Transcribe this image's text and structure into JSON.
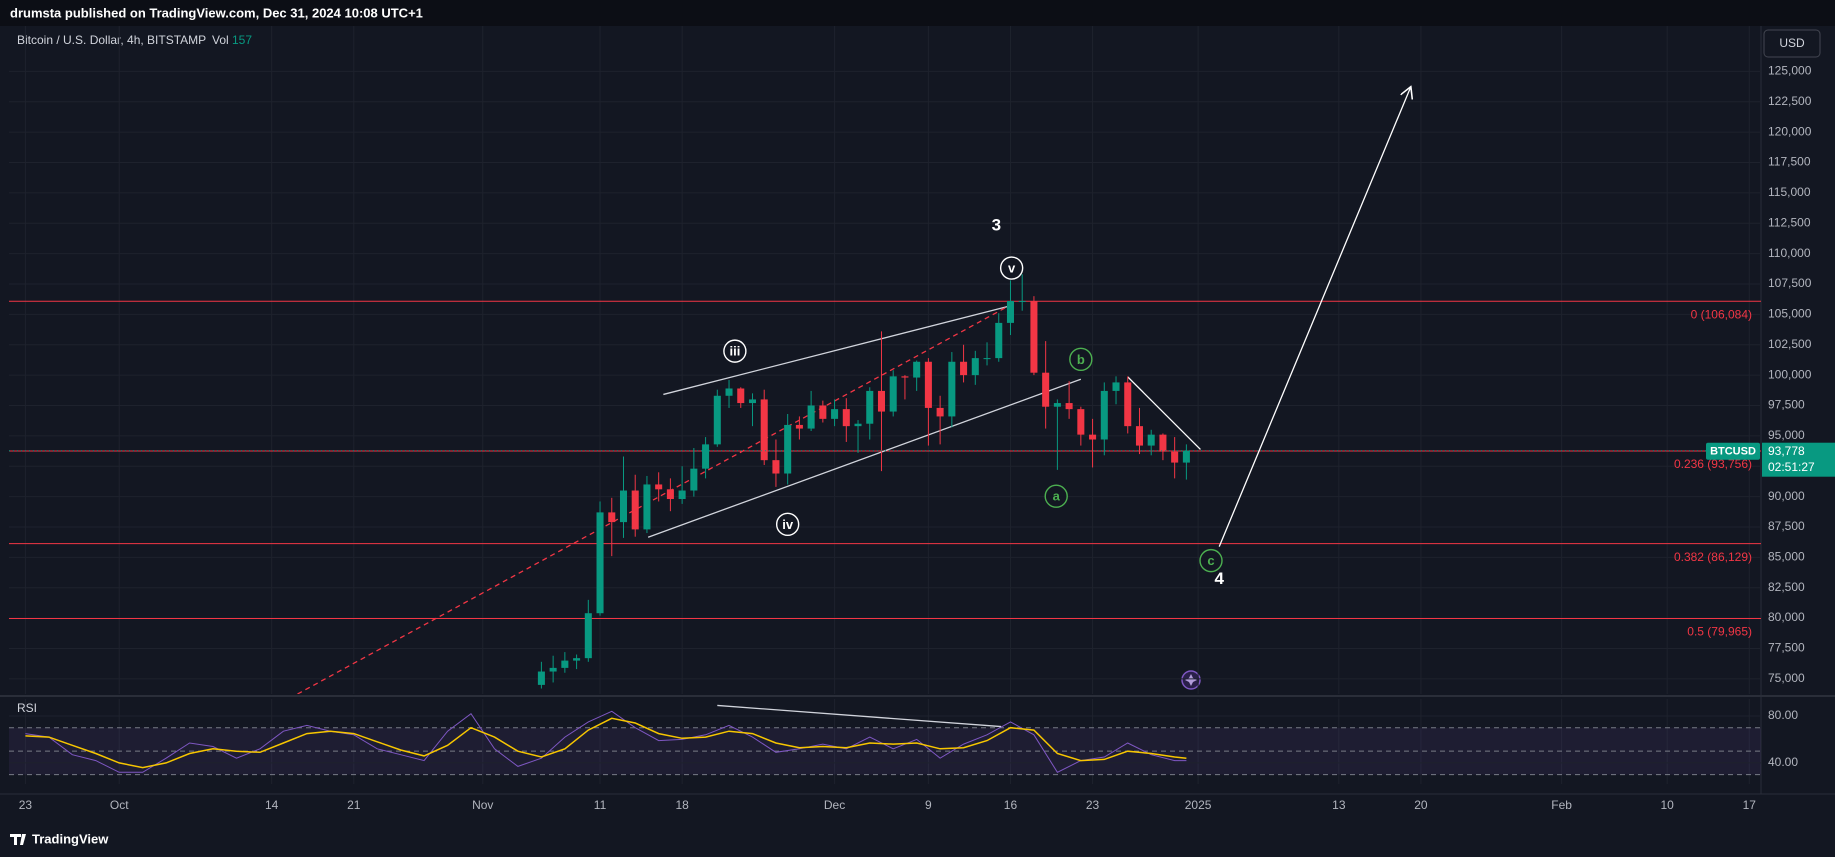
{
  "header": {
    "publisher": "drumsta published on TradingView.com, Dec 31, 2024 10:08 UTC+1",
    "footer": "TradingView"
  },
  "chart_data": [
    {
      "type": "candlestick",
      "legend_title": "Bitcoin / U.S. Dollar, 4h, BITSTAMP",
      "volume_label": "Vol",
      "volume_value": 157,
      "currency": "USD",
      "symbol": "BTCUSD",
      "last_price": {
        "value": 93778,
        "label": "93,778"
      },
      "countdown": "02:51:27",
      "up_color": "#089981",
      "down_color": "#f23645",
      "grid": true,
      "x": [
        44,
        45,
        46,
        47,
        48,
        49,
        50,
        51,
        52,
        53,
        54,
        55,
        56,
        57,
        58,
        59,
        60,
        61,
        62,
        63,
        64,
        65,
        66,
        67,
        68,
        69,
        70,
        71,
        72,
        73,
        74,
        75,
        76,
        77,
        78,
        79,
        80,
        81,
        82,
        83,
        84,
        85,
        86,
        87,
        88,
        89,
        90,
        91,
        92,
        93,
        94,
        95,
        96,
        97,
        98,
        99
      ],
      "open": [
        74500,
        75600,
        75900,
        76500,
        76700,
        80400,
        88700,
        87900,
        90500,
        87300,
        91000,
        90600,
        89800,
        90500,
        92300,
        94300,
        98300,
        98900,
        97700,
        98000,
        93000,
        91900,
        95900,
        95600,
        97500,
        96400,
        97200,
        95800,
        96000,
        98700,
        97000,
        99900,
        99800,
        101100,
        97300,
        96600,
        101100,
        100000,
        101400,
        101400,
        104300,
        106100,
        106100,
        100200,
        97400,
        97700,
        97200,
        95100,
        94700,
        98700,
        99400,
        95800,
        94200,
        95100,
        93700,
        92800
      ],
      "high": [
        76400,
        76900,
        77200,
        77000,
        81500,
        89600,
        89900,
        93300,
        91800,
        91700,
        92000,
        91500,
        92500,
        94000,
        94900,
        98800,
        99600,
        99000,
        98500,
        98800,
        94700,
        96800,
        96600,
        98700,
        97900,
        98000,
        98100,
        96300,
        99000,
        103600,
        100400,
        100000,
        101200,
        101400,
        98300,
        101900,
        102500,
        102000,
        102700,
        105100,
        107800,
        108300,
        106500,
        102800,
        98000,
        99500,
        97400,
        96400,
        99400,
        99900,
        99900,
        97300,
        95500,
        95200,
        94900,
        94300
      ],
      "low": [
        74200,
        74700,
        75500,
        75800,
        76400,
        80200,
        85100,
        86600,
        86700,
        87000,
        89600,
        88800,
        89400,
        90000,
        91500,
        94100,
        97300,
        97300,
        95800,
        92600,
        90800,
        91000,
        94700,
        95400,
        96100,
        95800,
        94500,
        93600,
        94700,
        92100,
        96600,
        98000,
        98700,
        94200,
        94300,
        95700,
        99400,
        99200,
        100800,
        101100,
        103300,
        105300,
        100000,
        95600,
        92200,
        96400,
        94200,
        92400,
        93400,
        97600,
        95200,
        93500,
        93400,
        93000,
        91500,
        91400
      ],
      "close": [
        75600,
        75900,
        76500,
        76700,
        80400,
        88700,
        87900,
        90500,
        87300,
        91000,
        90600,
        89800,
        90500,
        92300,
        94300,
        98300,
        98900,
        97700,
        98000,
        93000,
        91900,
        95900,
        95600,
        97500,
        96400,
        97200,
        95800,
        96000,
        98700,
        97000,
        99900,
        99800,
        101100,
        97300,
        96600,
        101100,
        100000,
        101400,
        101400,
        104300,
        106100,
        106100,
        100200,
        97400,
        97700,
        97200,
        95100,
        94700,
        98700,
        99400,
        95800,
        94200,
        95100,
        93700,
        92800,
        93778
      ],
      "xlim": [
        -1.4,
        148
      ],
      "ylim": [
        73750,
        128740
      ],
      "yticks": [
        {
          "value": 75000,
          "label": "75,000"
        },
        {
          "value": 77500,
          "label": "77,500"
        },
        {
          "value": 80000,
          "label": "80,000"
        },
        {
          "value": 82500,
          "label": "82,500"
        },
        {
          "value": 85000,
          "label": "85,000"
        },
        {
          "value": 87500,
          "label": "87,500"
        },
        {
          "value": 90000,
          "label": "90,000"
        },
        {
          "value": 92500,
          "label": "92,500"
        },
        {
          "value": 95000,
          "label": "95,000"
        },
        {
          "value": 97500,
          "label": "97,500"
        },
        {
          "value": 100000,
          "label": "100,000"
        },
        {
          "value": 102500,
          "label": "102,500"
        },
        {
          "value": 105000,
          "label": "105,000"
        },
        {
          "value": 107500,
          "label": "107,500"
        },
        {
          "value": 110000,
          "label": "110,000"
        },
        {
          "value": 112500,
          "label": "112,500"
        },
        {
          "value": 115000,
          "label": "115,000"
        },
        {
          "value": 117500,
          "label": "117,500"
        },
        {
          "value": 120000,
          "label": "120,000"
        },
        {
          "value": 122500,
          "label": "122,500"
        },
        {
          "value": 125000,
          "label": "125,000"
        }
      ],
      "xticks": [
        {
          "value": 0,
          "label": "23"
        },
        {
          "value": 8,
          "label": "Oct"
        },
        {
          "value": 21,
          "label": "14"
        },
        {
          "value": 28,
          "label": "21"
        },
        {
          "value": 39,
          "label": "Nov"
        },
        {
          "value": 49,
          "label": "11"
        },
        {
          "value": 56,
          "label": "18"
        },
        {
          "value": 69,
          "label": "Dec"
        },
        {
          "value": 77,
          "label": "9"
        },
        {
          "value": 84,
          "label": "16"
        },
        {
          "value": 91,
          "label": "23"
        },
        {
          "value": 100,
          "label": "2025"
        },
        {
          "value": 112,
          "label": "13"
        },
        {
          "value": 119,
          "label": "20"
        },
        {
          "value": 131,
          "label": "Feb"
        },
        {
          "value": 140,
          "label": "10"
        },
        {
          "value": 147,
          "label": "17"
        }
      ],
      "fib_color": "#f23645",
      "fib_levels": [
        {
          "value": 106084,
          "label": "0 (106,084)"
        },
        {
          "value": 93756,
          "label": "0.236 (93,756)"
        },
        {
          "value": 86129,
          "label": "0.382 (86,129)"
        },
        {
          "value": 79965,
          "label": "0.5 (79,965)"
        }
      ],
      "trend_lines": [
        {
          "x": [
            54.4,
            84.1
          ],
          "y": [
            98410,
            105730
          ],
          "color": "#d1d4dc",
          "dashed": false
        },
        {
          "x": [
            53.1,
            90.0
          ],
          "y": [
            86657,
            99663
          ],
          "color": "#d1d4dc",
          "dashed": false
        },
        {
          "x": [
            23.2,
            84.1
          ],
          "y": [
            73747,
            105827
          ],
          "color": "#f23645",
          "dashed": true
        },
        {
          "x": [
            94.0,
            100.2
          ],
          "y": [
            99855,
            93882
          ],
          "color": "#ffffff",
          "dashed": false
        }
      ],
      "arrow": {
        "x": [
          101.8,
          118.1
        ],
        "y": [
          85885,
          123651
        ],
        "color": "#ffffff"
      },
      "wave_labels": [
        {
          "text": "3",
          "x": 82.8,
          "y": 112283,
          "style": "plain",
          "color": "#ffffff"
        },
        {
          "text": "v",
          "x": 84.1,
          "y": 108815,
          "style": "circle",
          "color": "#ffffff"
        },
        {
          "text": "iii",
          "x": 60.5,
          "y": 101975,
          "style": "circle",
          "color": "#ffffff"
        },
        {
          "text": "iv",
          "x": 65.0,
          "y": 87717,
          "style": "circle",
          "color": "#ffffff"
        },
        {
          "text": "a",
          "x": 87.9,
          "y": 90030,
          "style": "circle",
          "color": "#4caf50"
        },
        {
          "text": "b",
          "x": 90.0,
          "y": 101300,
          "style": "circle",
          "color": "#4caf50"
        },
        {
          "text": "c",
          "x": 101.1,
          "y": 84730,
          "style": "circle",
          "color": "#4caf50"
        },
        {
          "text": "4",
          "x": 101.8,
          "y": 83190,
          "style": "plain",
          "color": "#ffffff"
        }
      ]
    },
    {
      "type": "line",
      "title": "RSI",
      "x": [
        0,
        2,
        4,
        6,
        8,
        10,
        12,
        14,
        16,
        18,
        20,
        22,
        24,
        26,
        28,
        30,
        32,
        34,
        36,
        38,
        40,
        42,
        44,
        46,
        48,
        50,
        52,
        54,
        56,
        58,
        60,
        62,
        64,
        66,
        68,
        70,
        72,
        74,
        76,
        78,
        80,
        82,
        84,
        86,
        88,
        90,
        92,
        94,
        96,
        98,
        99
      ],
      "ylim": [
        22,
        94.5
      ],
      "yticks": [
        {
          "value": 80,
          "label": "80.00"
        },
        {
          "value": 40,
          "label": "40.00"
        }
      ],
      "levels": [
        70,
        50,
        30
      ],
      "band_color": "#7e57c2",
      "series": [
        {
          "color": "#7e57c2",
          "values": [
            65,
            62,
            47,
            42,
            32,
            32,
            44,
            57,
            54,
            44,
            52,
            67,
            72,
            67,
            64,
            52,
            47,
            42,
            67,
            82,
            52,
            37,
            44,
            62,
            75,
            84,
            70,
            59,
            60,
            64,
            72,
            62,
            49,
            52,
            56,
            52,
            62,
            52,
            60,
            44,
            56,
            64,
            75,
            64,
            32,
            42,
            45,
            57,
            47,
            42,
            42
          ]
        },
        {
          "color": "#f7c600",
          "values": [
            63,
            62,
            55,
            48,
            40,
            36,
            40,
            48,
            52,
            50,
            49,
            57,
            65,
            67,
            65,
            58,
            51,
            46,
            55,
            70,
            62,
            50,
            45,
            52,
            68,
            78,
            74,
            65,
            61,
            62,
            67,
            65,
            57,
            53,
            54,
            53,
            57,
            56,
            57,
            52,
            53,
            59,
            70,
            68,
            48,
            42,
            43,
            50,
            48,
            45,
            44
          ]
        }
      ],
      "trend_lines": [
        {
          "x": [
            59.0,
            83.2
          ],
          "y": [
            89,
            71
          ],
          "color": "#d1d4dc",
          "dashed": false
        }
      ]
    }
  ]
}
